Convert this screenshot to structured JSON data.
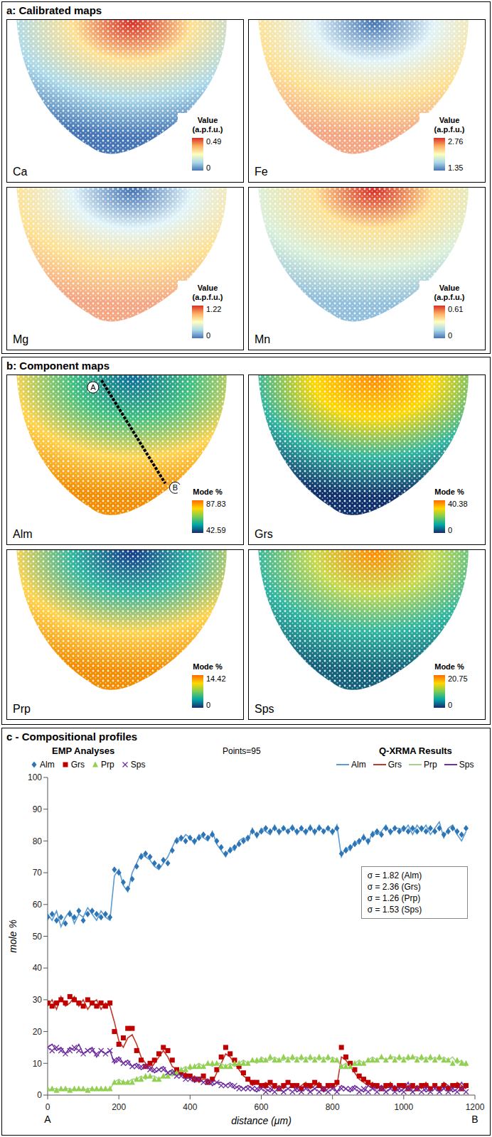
{
  "figure": {
    "panels": [
      {
        "title": "a: Calibrated maps",
        "colorbar_title": [
          "Value",
          "(a.p.f.u.)"
        ],
        "maps": [
          {
            "label": "Ca",
            "range": [
              0,
              0.49
            ]
          },
          {
            "label": "Fe",
            "range": [
              1.35,
              2.76
            ]
          },
          {
            "label": "Mg",
            "range": [
              0,
              1.22
            ]
          },
          {
            "label": "Mn",
            "range": [
              0,
              0.61
            ]
          }
        ]
      },
      {
        "title": "b: Component maps",
        "colorbar_title": [
          "Mode %"
        ],
        "maps": [
          {
            "label": "Alm",
            "range": [
              42.59,
              87.83
            ],
            "profile_labels": [
              "A",
              "B"
            ]
          },
          {
            "label": "Grs",
            "range": [
              0,
              40.38
            ]
          },
          {
            "label": "Prp",
            "range": [
              0,
              14.42
            ]
          },
          {
            "label": "Sps",
            "range": [
              0,
              20.75
            ]
          }
        ]
      }
    ]
  },
  "chart_data": {
    "type": "line",
    "title": "c - Compositional profiles",
    "xlabel": "distance (μm)",
    "ylabel": "mole %",
    "end_labels": [
      "A",
      "B"
    ],
    "legend_titles": [
      "EMP Analyses",
      "Q-XRMA Results"
    ],
    "annotations": [
      "Points=95"
    ],
    "sigma_box": [
      "σ = 1.82 (Alm)",
      "σ = 2.36 (Grs)",
      "σ = 1.26 (Prp)",
      "σ = 1.53 (Sps)"
    ],
    "legend": "top",
    "grid": false,
    "xlim": [
      0,
      1200
    ],
    "xticks": [
      0,
      200,
      400,
      600,
      800,
      1000,
      1200
    ],
    "ylim": [
      0,
      100
    ],
    "yticks": [
      0,
      10,
      20,
      30,
      40,
      50,
      60,
      70,
      80,
      90,
      100
    ],
    "x": [
      0,
      12.5,
      25,
      37.5,
      50,
      62.5,
      75,
      87.5,
      100,
      112.5,
      125,
      137.5,
      150,
      162.5,
      175,
      187.5,
      200,
      212.5,
      225,
      237.5,
      250,
      262.5,
      275,
      287.5,
      300,
      312.5,
      325,
      337.5,
      350,
      362.5,
      375,
      387.5,
      400,
      412.5,
      425,
      437.5,
      450,
      462.5,
      475,
      487.5,
      500,
      512.5,
      525,
      537.5,
      550,
      562.5,
      575,
      587.5,
      600,
      612.5,
      625,
      637.5,
      650,
      662.5,
      675,
      687.5,
      700,
      712.5,
      725,
      737.5,
      750,
      762.5,
      775,
      787.5,
      800,
      812.5,
      825,
      837.5,
      850,
      862.5,
      875,
      887.5,
      900,
      912.5,
      925,
      937.5,
      950,
      962.5,
      975,
      987.5,
      1000,
      1012.5,
      1025,
      1037.5,
      1050,
      1062.5,
      1075,
      1087.5,
      1100,
      1112.5,
      1125,
      1137.5,
      1150,
      1162.5,
      1175
    ],
    "series": [
      {
        "name": "Alm",
        "type": "scatter",
        "marker": "diamond",
        "color": "#2e75b6",
        "values": [
          56,
          57,
          55,
          56,
          54,
          57,
          56,
          58,
          55,
          57,
          58,
          57,
          56,
          57,
          56,
          71,
          70,
          67,
          65,
          68,
          72,
          75,
          76,
          75,
          73,
          72,
          74,
          73,
          77,
          80,
          81,
          80,
          81,
          80,
          81,
          82,
          81,
          82,
          80,
          78,
          76,
          77,
          78,
          79,
          80,
          81,
          83,
          82,
          83,
          84,
          83,
          84,
          83,
          84,
          83,
          84,
          83,
          84,
          83,
          84,
          83,
          84,
          83,
          84,
          83,
          84,
          76,
          77,
          78,
          79,
          80,
          81,
          80,
          82,
          83,
          82,
          84,
          83,
          84,
          83,
          84,
          83,
          84,
          83,
          84,
          83,
          84,
          83,
          84,
          82,
          83,
          84,
          83,
          82,
          84
        ]
      },
      {
        "name": "Grs",
        "type": "scatter",
        "marker": "square",
        "color": "#c00000",
        "values": [
          29,
          28,
          29,
          30,
          29,
          31,
          30,
          29,
          28,
          30,
          29,
          28,
          29,
          28,
          29,
          20,
          16,
          18,
          21,
          21,
          14,
          11,
          9,
          10,
          11,
          13,
          15,
          14,
          11,
          8,
          7,
          6,
          6,
          5,
          5,
          6,
          4,
          5,
          8,
          12,
          15,
          13,
          11,
          9,
          7,
          5,
          4,
          4,
          3,
          3,
          4,
          3,
          2,
          3,
          4,
          3,
          3,
          2,
          3,
          3,
          4,
          3,
          2,
          3,
          3,
          4,
          15,
          12,
          10,
          8,
          6,
          5,
          4,
          3,
          3,
          2,
          3,
          3,
          2,
          3,
          3,
          2,
          3,
          2,
          3,
          3,
          2,
          3,
          2,
          3,
          2,
          3,
          3,
          2,
          3
        ]
      },
      {
        "name": "Prp",
        "type": "scatter",
        "marker": "triangle",
        "color": "#92d050",
        "values": [
          2,
          2,
          1.5,
          2,
          2,
          1.5,
          2,
          2,
          2,
          1.5,
          2,
          2,
          2,
          2,
          2,
          4,
          4,
          4,
          4,
          4,
          5,
          5,
          6,
          6,
          5,
          5,
          6,
          6,
          7,
          7,
          8,
          8,
          9,
          9,
          9,
          9,
          10,
          10,
          10,
          9,
          9,
          9,
          10,
          10,
          10,
          10,
          11,
          11,
          11,
          11,
          12,
          11,
          11,
          12,
          11,
          12,
          11,
          12,
          11,
          12,
          11,
          12,
          11,
          12,
          11,
          11,
          9,
          9,
          9,
          10,
          10,
          10,
          11,
          11,
          11,
          12,
          11,
          12,
          11,
          12,
          11,
          12,
          12,
          11,
          12,
          11,
          12,
          11,
          12,
          11,
          11,
          10,
          11,
          10,
          10
        ]
      },
      {
        "name": "Sps",
        "type": "scatter",
        "marker": "x",
        "color": "#7030a0",
        "values": [
          15,
          14,
          15,
          14,
          13,
          14,
          15,
          14,
          13,
          14,
          14,
          13,
          14,
          13,
          14,
          11,
          11,
          10,
          10,
          9,
          9,
          9,
          9,
          8,
          8,
          8,
          8,
          7,
          7,
          6,
          6,
          5,
          5,
          5,
          5,
          4,
          4,
          4,
          4,
          3,
          3,
          3,
          3,
          2,
          2,
          2,
          2,
          2,
          2,
          1,
          2,
          1,
          2,
          1,
          2,
          1,
          2,
          1,
          2,
          1,
          2,
          1,
          2,
          1,
          2,
          1,
          2,
          2,
          2,
          2,
          1,
          2,
          1,
          2,
          1,
          2,
          1,
          2,
          1,
          2,
          1,
          2,
          1,
          2,
          1,
          2,
          1,
          2,
          1,
          2,
          1,
          2,
          1,
          2,
          1
        ]
      },
      {
        "name": "Alm",
        "type": "line",
        "line_style": "solid",
        "color": "#5b9bd5",
        "values": [
          57,
          55,
          58,
          53,
          56,
          58,
          54,
          57,
          56,
          59,
          57,
          55,
          58,
          56,
          55,
          69,
          71,
          66,
          64,
          70,
          73,
          76,
          75,
          74,
          72,
          71,
          73,
          75,
          78,
          81,
          80,
          82,
          81,
          79,
          82,
          81,
          80,
          83,
          79,
          77,
          75,
          78,
          77,
          80,
          81,
          80,
          84,
          81,
          84,
          83,
          82,
          85,
          82,
          84,
          83,
          85,
          82,
          84,
          82,
          85,
          82,
          85,
          83,
          84,
          82,
          85,
          75,
          78,
          77,
          80,
          79,
          82,
          79,
          83,
          82,
          83,
          85,
          82,
          84,
          84,
          83,
          85,
          82,
          85,
          83,
          85,
          82,
          84,
          86,
          81,
          84,
          85,
          82,
          80,
          83
        ]
      },
      {
        "name": "Grs",
        "type": "line",
        "line_style": "solid",
        "color": "#c0392b",
        "values": [
          28,
          30,
          27,
          31,
          28,
          29,
          31,
          28,
          30,
          27,
          29,
          30,
          27,
          29,
          28,
          23,
          17,
          15,
          18,
          19,
          16,
          12,
          10,
          8,
          10,
          12,
          14,
          12,
          9,
          8,
          6,
          7,
          5,
          6,
          4,
          5,
          5,
          4,
          7,
          10,
          13,
          12,
          10,
          8,
          6,
          5,
          3,
          4,
          3,
          4,
          3,
          2,
          3,
          2,
          4,
          3,
          2,
          3,
          4,
          2,
          3,
          4,
          2,
          3,
          2,
          3,
          12,
          11,
          9,
          7,
          5,
          4,
          3,
          4,
          2,
          3,
          2,
          4,
          2,
          3,
          2,
          3,
          2,
          3,
          2,
          4,
          2,
          3,
          2,
          4,
          3,
          2,
          4,
          3,
          2
        ]
      },
      {
        "name": "Prp",
        "type": "line",
        "line_style": "solid",
        "color": "#a9d18e",
        "values": [
          1.5,
          2,
          2,
          1.5,
          2,
          2,
          1.5,
          2,
          1.5,
          2,
          2,
          1.5,
          2,
          1.5,
          2,
          4,
          5,
          4,
          4,
          5,
          5,
          6,
          5,
          6,
          6,
          5,
          6,
          7,
          6,
          7,
          8,
          9,
          8,
          9,
          10,
          9,
          10,
          9,
          10,
          10,
          9,
          10,
          9,
          10,
          11,
          10,
          11,
          10,
          12,
          11,
          11,
          12,
          11,
          11,
          12,
          11,
          12,
          11,
          12,
          11,
          12,
          11,
          12,
          11,
          12,
          11,
          9,
          10,
          9,
          10,
          11,
          10,
          11,
          12,
          11,
          12,
          11,
          12,
          12,
          11,
          12,
          11,
          12,
          12,
          11,
          12,
          11,
          12,
          11,
          12,
          11,
          12,
          10,
          11,
          9
        ]
      },
      {
        "name": "Sps",
        "type": "line",
        "line_style": "solid",
        "color": "#7030a0",
        "values": [
          15,
          16,
          14,
          15,
          13,
          15,
          14,
          16,
          13,
          14,
          15,
          12,
          14,
          13,
          14,
          10,
          12,
          10,
          11,
          9,
          10,
          8,
          9,
          9,
          7,
          8,
          9,
          7,
          8,
          6,
          7,
          5,
          6,
          4,
          5,
          4,
          5,
          3,
          4,
          4,
          3,
          4,
          2,
          3,
          2,
          3,
          2,
          1,
          3,
          2,
          1,
          3,
          2,
          1,
          2,
          3,
          1,
          2,
          3,
          1,
          2,
          3,
          1,
          2,
          3,
          1,
          3,
          2,
          1,
          3,
          2,
          1,
          3,
          2,
          2,
          3,
          1,
          2,
          3,
          1,
          2,
          4,
          1,
          2,
          3,
          1,
          2,
          3,
          1,
          2,
          3,
          1,
          2,
          4,
          2
        ]
      }
    ]
  }
}
